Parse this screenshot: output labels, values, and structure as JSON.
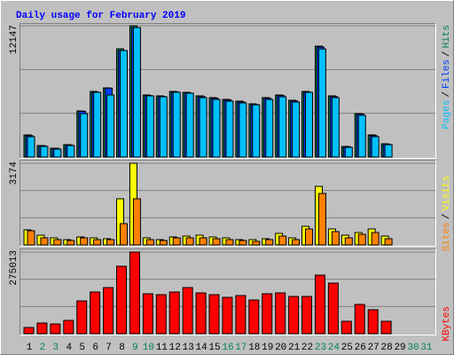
{
  "title": "Daily usage for February 2019",
  "legend_separator": "/",
  "chart_data": [
    {
      "type": "bar",
      "ylim": [
        0,
        12147
      ],
      "yticks": [
        12147
      ],
      "series": [
        {
          "name": "Hits",
          "color": "#00805c",
          "values": [
            2052,
            1067,
            821,
            1149,
            4268,
            6073,
            6401,
            10013,
            12147,
            5745,
            5663,
            6073,
            5991,
            5663,
            5499,
            5335,
            5170,
            4924,
            5499,
            5745,
            5252,
            6073,
            10259,
            5663,
            985,
            4021,
            2052,
            1231,
            null,
            null,
            null
          ]
        },
        {
          "name": "Files",
          "color": "#0040ff",
          "values": [
            1985,
            1040,
            800,
            1120,
            4230,
            6010,
            6380,
            9850,
            11980,
            5690,
            5610,
            6020,
            5930,
            5600,
            5440,
            5280,
            5110,
            4870,
            5440,
            5690,
            5200,
            6010,
            10180,
            5600,
            960,
            3980,
            1990,
            1200,
            null,
            null,
            null
          ]
        },
        {
          "name": "Pages",
          "color": "#00c0ff",
          "values": [
            1890,
            985,
            740,
            1070,
            4020,
            5990,
            5740,
            9850,
            11980,
            5660,
            5580,
            6000,
            5910,
            5500,
            5330,
            5170,
            5010,
            4840,
            5330,
            5580,
            5090,
            5990,
            10000,
            5500,
            900,
            3860,
            1890,
            1150,
            null,
            null,
            null
          ]
        }
      ]
    },
    {
      "type": "bar",
      "ylim": [
        0,
        3174
      ],
      "yticks": [
        3174
      ],
      "series": [
        {
          "name": "Visits",
          "color": "#ffff00",
          "values": [
            587,
            380,
            276,
            207,
            311,
            276,
            242,
            1794,
            3174,
            276,
            207,
            311,
            345,
            380,
            311,
            276,
            207,
            207,
            242,
            449,
            276,
            725,
            2277,
            621,
            380,
            483,
            621,
            345,
            null,
            null,
            null
          ]
        },
        {
          "name": "Sites",
          "color": "#ff8000",
          "values": [
            552,
            276,
            207,
            173,
            276,
            207,
            207,
            828,
            1794,
            207,
            173,
            276,
            276,
            276,
            242,
            207,
            173,
            138,
            207,
            345,
            207,
            621,
            2001,
            518,
            276,
            414,
            483,
            242,
            null,
            null,
            null
          ]
        }
      ]
    },
    {
      "type": "bar",
      "ylim": [
        0,
        275013
      ],
      "yticks": [
        275013
      ],
      "categories": [
        "1",
        "2",
        "3",
        "4",
        "5",
        "6",
        "7",
        "8",
        "9",
        "10",
        "11",
        "12",
        "13",
        "14",
        "15",
        "16",
        "17",
        "18",
        "19",
        "20",
        "21",
        "22",
        "23",
        "24",
        "25",
        "26",
        "27",
        "28",
        "29",
        "30",
        "31"
      ],
      "label_colors": [
        "#000000",
        "#00805c",
        "#00805c",
        "#000000",
        "#000000",
        "#000000",
        "#000000",
        "#000000",
        "#00805c",
        "#00805c",
        "#000000",
        "#000000",
        "#000000",
        "#000000",
        "#000000",
        "#00805c",
        "#00805c",
        "#000000",
        "#000000",
        "#000000",
        "#000000",
        "#000000",
        "#00805c",
        "#00805c",
        "#000000",
        "#000000",
        "#000000",
        "#000000",
        "#000000",
        "#00805c",
        "#00805c"
      ],
      "series": [
        {
          "name": "KBytes",
          "color": "#ff0000",
          "values": [
            20923,
            35870,
            32880,
            44837,
            110600,
            140500,
            155400,
            227200,
            275013,
            134500,
            131500,
            140500,
            155400,
            137500,
            131500,
            122500,
            128500,
            113600,
            134500,
            137500,
            125500,
            125500,
            197300,
            170400,
            41850,
            98600,
            80700,
            41850,
            null,
            null,
            null
          ]
        }
      ]
    }
  ]
}
